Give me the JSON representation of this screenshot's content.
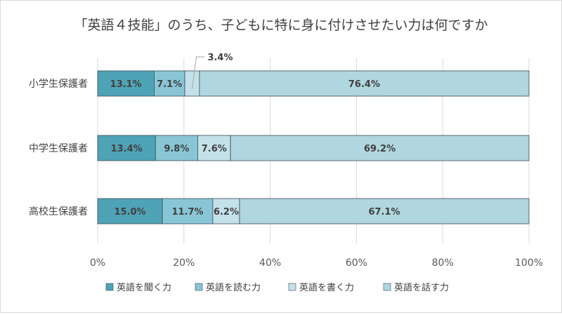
{
  "chart_data": {
    "type": "bar",
    "orientation": "horizontal",
    "stacked": "percent",
    "title": "「英語４技能」のうち、子どもに特に身に付けさせたい力は何ですか",
    "categories": [
      "小学生保護者",
      "中学生保護者",
      "高校生保護者"
    ],
    "series": [
      {
        "name": "英語を聞く力",
        "values": [
          13.1,
          13.4,
          15.0
        ],
        "labels": [
          "13.1%",
          "13.4%",
          "15.0%"
        ],
        "color": "#4fa3b6"
      },
      {
        "name": "英語を読む力",
        "values": [
          7.1,
          9.8,
          11.7
        ],
        "labels": [
          "7.1%",
          "9.8%",
          "11.7%"
        ],
        "color": "#88c6d6"
      },
      {
        "name": "英語を書く力",
        "values": [
          3.4,
          7.6,
          6.2
        ],
        "labels": [
          "3.4%",
          "7.6%",
          "6.2%"
        ],
        "color": "#c4e1ea"
      },
      {
        "name": "英語を話す力",
        "values": [
          76.4,
          69.2,
          67.1
        ],
        "labels": [
          "76.4%",
          "69.2%",
          "67.1%"
        ],
        "color": "#b0d6e0"
      }
    ],
    "xlim": [
      0,
      100
    ],
    "x_ticks": [
      0,
      20,
      40,
      60,
      80,
      100
    ],
    "x_tick_labels": [
      "0%",
      "20%",
      "40%",
      "60%",
      "80%",
      "100%"
    ],
    "grid": true,
    "legend_position": "bottom",
    "callout_label": "3.4%"
  }
}
